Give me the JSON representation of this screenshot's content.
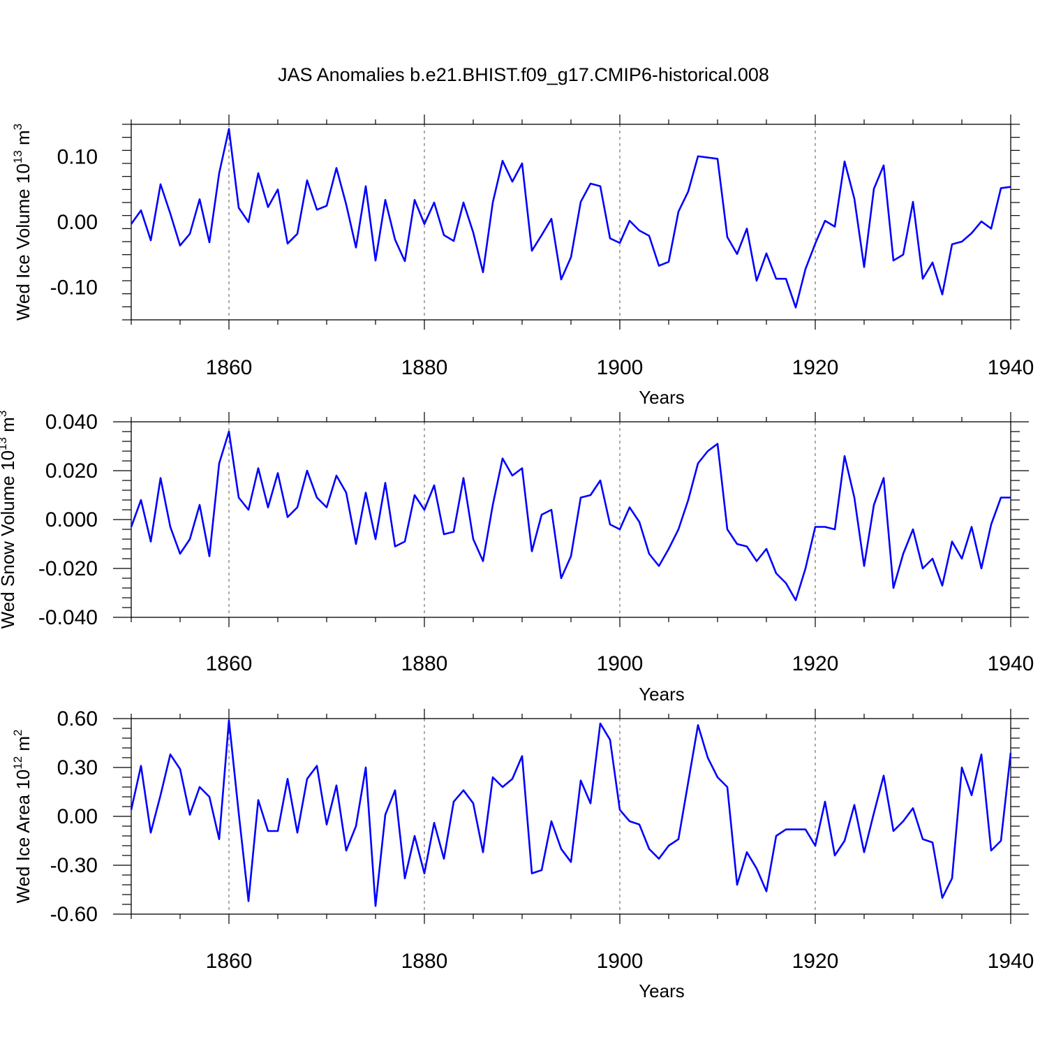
{
  "title": "JAS Anomalies b.e21.BHIST.f09_g17.CMIP6-historical.008",
  "line_color": "#0000ff",
  "chart_data": [
    {
      "type": "line",
      "title": "JAS Anomalies b.e21.BHIST.f09_g17.CMIP6-historical.008",
      "xlabel": "Years",
      "ylabel": "Wed Ice Volume 10",
      "ylabel_exp": "13",
      "ylabel_unit": " m",
      "ylabel_unit_exp": "3",
      "xlim": [
        1850,
        1940
      ],
      "ylim": [
        -0.15,
        0.15
      ],
      "yticks": [
        -0.1,
        0.0,
        0.1
      ],
      "ytick_labels": [
        "-0.10",
        "0.00",
        "0.10"
      ],
      "xticks": [
        1860,
        1880,
        1900,
        1920,
        1940
      ],
      "xtick_labels": [
        "1860",
        "1880",
        "1900",
        "1920",
        "1940"
      ],
      "series": [
        {
          "name": "Wed Ice Volume",
          "x_start": 1850,
          "values": [
            -0.003,
            0.018,
            -0.028,
            0.058,
            0.013,
            -0.036,
            -0.018,
            0.035,
            -0.031,
            0.075,
            0.143,
            0.022,
            0.0,
            0.075,
            0.023,
            0.05,
            -0.033,
            -0.018,
            0.064,
            0.019,
            0.025,
            0.083,
            0.027,
            -0.039,
            0.055,
            -0.059,
            0.034,
            -0.027,
            -0.06,
            0.034,
            -0.003,
            0.03,
            -0.02,
            -0.029,
            0.03,
            -0.016,
            -0.077,
            0.03,
            0.094,
            0.062,
            0.09,
            -0.044,
            -0.02,
            0.005,
            -0.088,
            -0.054,
            0.031,
            0.059,
            0.055,
            -0.025,
            -0.032,
            0.002,
            -0.013,
            -0.021,
            -0.067,
            -0.061,
            0.016,
            0.047,
            0.101,
            0.099,
            0.097,
            -0.023,
            -0.049,
            -0.01,
            -0.09,
            -0.048,
            -0.087,
            -0.087,
            -0.131,
            -0.072,
            -0.033,
            0.002,
            -0.007,
            0.093,
            0.036,
            -0.069,
            0.051,
            0.087,
            -0.059,
            -0.05,
            0.031,
            -0.087,
            -0.062,
            -0.111,
            -0.034,
            -0.03,
            -0.017,
            0.001,
            -0.01,
            0.052,
            0.054
          ]
        }
      ]
    },
    {
      "type": "line",
      "xlabel": "Years",
      "ylabel": "Wed Snow Volume 10",
      "ylabel_exp": "13",
      "ylabel_unit": " m",
      "ylabel_unit_exp": "3",
      "xlim": [
        1850,
        1940
      ],
      "ylim": [
        -0.04,
        0.04
      ],
      "yticks": [
        -0.04,
        -0.02,
        0.0,
        0.02,
        0.04
      ],
      "ytick_labels": [
        "-0.040",
        "-0.020",
        "0.000",
        "0.020",
        "0.040"
      ],
      "xticks": [
        1860,
        1880,
        1900,
        1920,
        1940
      ],
      "xtick_labels": [
        "1860",
        "1880",
        "1900",
        "1920",
        "1940"
      ],
      "series": [
        {
          "name": "Wed Snow Volume",
          "x_start": 1850,
          "values": [
            -0.003,
            0.008,
            -0.009,
            0.017,
            -0.003,
            -0.014,
            -0.008,
            0.006,
            -0.015,
            0.023,
            0.036,
            0.009,
            0.004,
            0.021,
            0.005,
            0.019,
            0.001,
            0.005,
            0.02,
            0.009,
            0.005,
            0.018,
            0.011,
            -0.01,
            0.011,
            -0.008,
            0.015,
            -0.011,
            -0.009,
            0.01,
            0.004,
            0.014,
            -0.006,
            -0.005,
            0.017,
            -0.008,
            -0.017,
            0.006,
            0.025,
            0.018,
            0.021,
            -0.013,
            0.002,
            0.004,
            -0.024,
            -0.015,
            0.009,
            0.01,
            0.016,
            -0.002,
            -0.004,
            0.005,
            -0.001,
            -0.014,
            -0.019,
            -0.012,
            -0.004,
            0.008,
            0.023,
            0.028,
            0.031,
            -0.004,
            -0.01,
            -0.011,
            -0.017,
            -0.012,
            -0.022,
            -0.026,
            -0.033,
            -0.02,
            -0.003,
            -0.003,
            -0.004,
            0.026,
            0.009,
            -0.019,
            0.006,
            0.017,
            -0.028,
            -0.014,
            -0.004,
            -0.02,
            -0.016,
            -0.027,
            -0.009,
            -0.016,
            -0.003,
            -0.02,
            -0.002,
            0.009,
            0.009
          ]
        }
      ]
    },
    {
      "type": "line",
      "xlabel": "Years",
      "ylabel": "Wed Ice Area 10",
      "ylabel_exp": "12",
      "ylabel_unit": " m",
      "ylabel_unit_exp": "2",
      "xlim": [
        1850,
        1940
      ],
      "ylim": [
        -0.6,
        0.6
      ],
      "yticks": [
        -0.6,
        -0.3,
        0.0,
        0.3,
        0.6
      ],
      "ytick_labels": [
        "-0.60",
        "-0.30",
        "0.00",
        "0.30",
        "0.60"
      ],
      "xticks": [
        1860,
        1880,
        1900,
        1920,
        1940
      ],
      "xtick_labels": [
        "1860",
        "1880",
        "1900",
        "1920",
        "1940"
      ],
      "series": [
        {
          "name": "Wed Ice Area",
          "x_start": 1850,
          "values": [
            0.04,
            0.31,
            -0.1,
            0.13,
            0.38,
            0.29,
            0.01,
            0.18,
            0.12,
            -0.14,
            0.59,
            0.02,
            -0.52,
            0.1,
            -0.09,
            -0.09,
            0.23,
            -0.1,
            0.23,
            0.31,
            -0.05,
            0.19,
            -0.21,
            -0.06,
            0.3,
            -0.55,
            0.01,
            0.16,
            -0.38,
            -0.12,
            -0.35,
            -0.04,
            -0.26,
            0.09,
            0.16,
            0.08,
            -0.22,
            0.24,
            0.18,
            0.23,
            0.37,
            -0.35,
            -0.33,
            -0.03,
            -0.2,
            -0.28,
            0.22,
            0.08,
            0.57,
            0.47,
            0.04,
            -0.03,
            -0.05,
            -0.2,
            -0.26,
            -0.18,
            -0.14,
            0.21,
            0.56,
            0.36,
            0.24,
            0.18,
            -0.42,
            -0.22,
            -0.32,
            -0.46,
            -0.12,
            -0.08,
            -0.08,
            -0.08,
            -0.18,
            0.09,
            -0.24,
            -0.15,
            0.07,
            -0.22,
            0.02,
            0.25,
            -0.09,
            -0.03,
            0.05,
            -0.14,
            -0.16,
            -0.5,
            -0.38,
            0.3,
            0.13,
            0.38,
            -0.21,
            -0.15,
            0.39
          ]
        }
      ]
    }
  ]
}
